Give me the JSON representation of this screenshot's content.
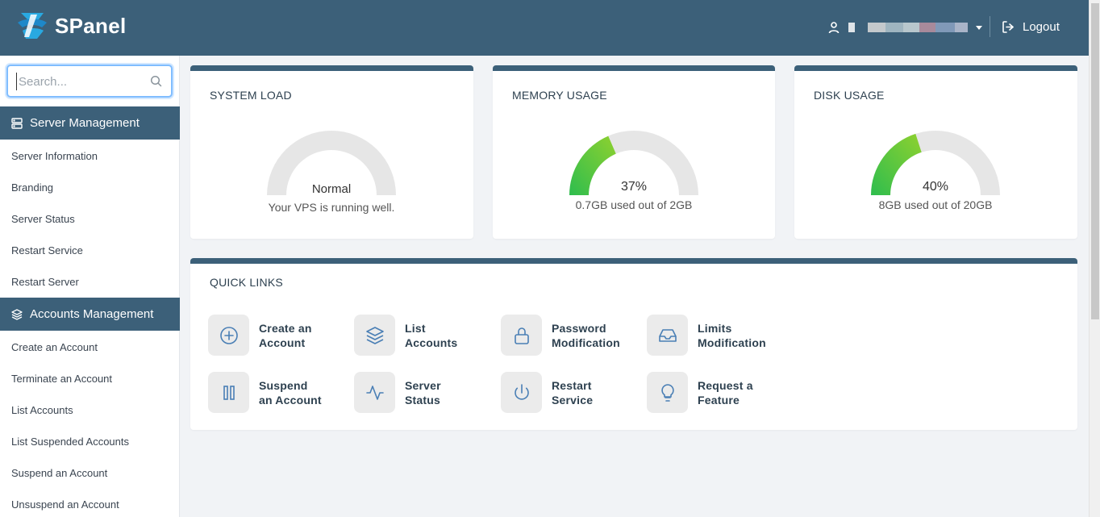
{
  "app": {
    "name": "SPanel"
  },
  "header": {
    "username": "a███████████n",
    "logout_label": "Logout"
  },
  "sidebar": {
    "search_placeholder": "Search...",
    "sections": [
      {
        "title": "Server Management",
        "items": [
          "Server Information",
          "Branding",
          "Server Status",
          "Restart Service",
          "Restart Server"
        ]
      },
      {
        "title": "Accounts Management",
        "items": [
          "Create an Account",
          "Terminate an Account",
          "List Accounts",
          "List Suspended Accounts",
          "Suspend an Account",
          "Unsuspend an Account"
        ]
      }
    ]
  },
  "widgets": {
    "system_load": {
      "title": "SYSTEM LOAD",
      "status": "Normal",
      "subtitle": "Your VPS is running well."
    },
    "memory": {
      "title": "MEMORY USAGE",
      "percent": 37,
      "value_label": "37%",
      "subtitle": "0.7GB used out of 2GB"
    },
    "disk": {
      "title": "DISK USAGE",
      "percent": 40,
      "value_label": "40%",
      "subtitle": "8GB used out of 20GB"
    }
  },
  "quick_links": {
    "title": "QUICK LINKS",
    "items": [
      {
        "line1": "Create an",
        "line2": "Account",
        "icon": "plus-circle-icon"
      },
      {
        "line1": "List",
        "line2": "Accounts",
        "icon": "layers-icon"
      },
      {
        "line1": "Password",
        "line2": "Modification",
        "icon": "lock-icon"
      },
      {
        "line1": "Limits",
        "line2": "Modification",
        "icon": "inbox-icon"
      },
      {
        "line1": "Suspend",
        "line2": "an Account",
        "icon": "pause-icon"
      },
      {
        "line1": "Server",
        "line2": "Status",
        "icon": "activity-icon"
      },
      {
        "line1": "Restart",
        "line2": "Service",
        "icon": "power-icon"
      },
      {
        "line1": "Request a",
        "line2": "Feature",
        "icon": "lightbulb-icon"
      }
    ]
  },
  "colors": {
    "brand": "#3c6079",
    "gauge_track": "#e6e6e6",
    "gauge_fill_start": "#2ebd4e",
    "gauge_fill_end": "#8fd12f",
    "icon_blue": "#4a7fb5"
  }
}
